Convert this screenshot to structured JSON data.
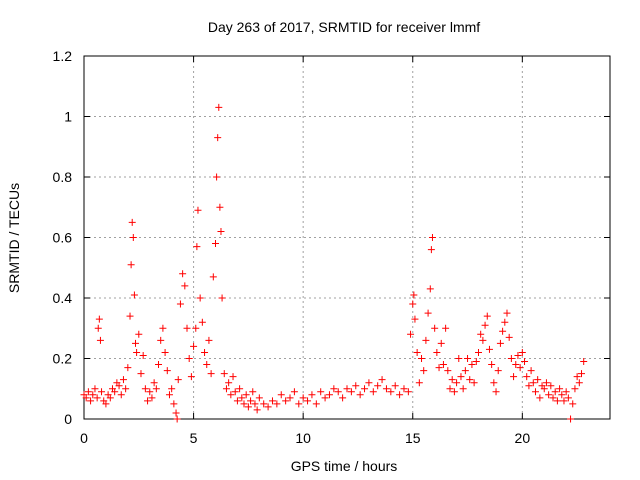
{
  "chart_data": {
    "type": "scatter",
    "title": "Day 263 of 2017, SRMTID for receiver lmmf",
    "xlabel": "GPS time / hours",
    "ylabel": "SRMTID / TECUs",
    "xlim": [
      0,
      24
    ],
    "ylim": [
      0,
      1.2
    ],
    "x_ticks": [
      0,
      5,
      10,
      15,
      20
    ],
    "x_tick_labels": [
      "0",
      "5",
      "10",
      "15",
      "20"
    ],
    "y_ticks": [
      0,
      0.2,
      0.4,
      0.6,
      0.8,
      1,
      1.2
    ],
    "y_tick_labels": [
      "0",
      "0.2",
      "0.4",
      "0.6",
      "0.8",
      "1",
      "1.2"
    ],
    "grid": true,
    "marker": "+",
    "color": "#ff0000",
    "series": [
      {
        "name": "SRMTID",
        "points": [
          [
            0.0,
            0.08
          ],
          [
            0.1,
            0.07
          ],
          [
            0.2,
            0.09
          ],
          [
            0.3,
            0.06
          ],
          [
            0.4,
            0.08
          ],
          [
            0.5,
            0.1
          ],
          [
            0.6,
            0.07
          ],
          [
            0.65,
            0.3
          ],
          [
            0.7,
            0.33
          ],
          [
            0.75,
            0.26
          ],
          [
            0.8,
            0.09
          ],
          [
            0.9,
            0.06
          ],
          [
            1.0,
            0.05
          ],
          [
            1.1,
            0.08
          ],
          [
            1.2,
            0.07
          ],
          [
            1.3,
            0.1
          ],
          [
            1.4,
            0.09
          ],
          [
            1.5,
            0.12
          ],
          [
            1.6,
            0.11
          ],
          [
            1.7,
            0.08
          ],
          [
            1.8,
            0.13
          ],
          [
            1.9,
            0.1
          ],
          [
            2.0,
            0.17
          ],
          [
            2.1,
            0.34
          ],
          [
            2.15,
            0.51
          ],
          [
            2.2,
            0.65
          ],
          [
            2.25,
            0.6
          ],
          [
            2.3,
            0.41
          ],
          [
            2.35,
            0.25
          ],
          [
            2.4,
            0.22
          ],
          [
            2.5,
            0.28
          ],
          [
            2.6,
            0.15
          ],
          [
            2.7,
            0.21
          ],
          [
            2.8,
            0.1
          ],
          [
            2.9,
            0.06
          ],
          [
            3.0,
            0.09
          ],
          [
            3.1,
            0.07
          ],
          [
            3.2,
            0.12
          ],
          [
            3.3,
            0.1
          ],
          [
            3.4,
            0.18
          ],
          [
            3.5,
            0.26
          ],
          [
            3.6,
            0.3
          ],
          [
            3.7,
            0.22
          ],
          [
            3.8,
            0.16
          ],
          [
            3.9,
            0.08
          ],
          [
            4.0,
            0.1
          ],
          [
            4.1,
            0.05
          ],
          [
            4.2,
            0.02
          ],
          [
            4.25,
            0.0
          ],
          [
            4.3,
            0.13
          ],
          [
            4.4,
            0.38
          ],
          [
            4.5,
            0.48
          ],
          [
            4.6,
            0.44
          ],
          [
            4.7,
            0.3
          ],
          [
            4.8,
            0.2
          ],
          [
            4.9,
            0.14
          ],
          [
            5.0,
            0.24
          ],
          [
            5.1,
            0.3
          ],
          [
            5.15,
            0.57
          ],
          [
            5.2,
            0.69
          ],
          [
            5.3,
            0.4
          ],
          [
            5.4,
            0.32
          ],
          [
            5.5,
            0.22
          ],
          [
            5.6,
            0.18
          ],
          [
            5.7,
            0.26
          ],
          [
            5.8,
            0.15
          ],
          [
            5.9,
            0.47
          ],
          [
            6.0,
            0.58
          ],
          [
            6.05,
            0.8
          ],
          [
            6.1,
            0.93
          ],
          [
            6.15,
            1.03
          ],
          [
            6.2,
            0.7
          ],
          [
            6.25,
            0.62
          ],
          [
            6.3,
            0.4
          ],
          [
            6.4,
            0.15
          ],
          [
            6.5,
            0.1
          ],
          [
            6.6,
            0.12
          ],
          [
            6.7,
            0.08
          ],
          [
            6.8,
            0.14
          ],
          [
            6.9,
            0.09
          ],
          [
            7.0,
            0.06
          ],
          [
            7.1,
            0.1
          ],
          [
            7.2,
            0.07
          ],
          [
            7.3,
            0.05
          ],
          [
            7.4,
            0.08
          ],
          [
            7.5,
            0.04
          ],
          [
            7.6,
            0.06
          ],
          [
            7.7,
            0.09
          ],
          [
            7.8,
            0.05
          ],
          [
            7.9,
            0.03
          ],
          [
            8.0,
            0.07
          ],
          [
            8.2,
            0.05
          ],
          [
            8.4,
            0.04
          ],
          [
            8.6,
            0.06
          ],
          [
            8.8,
            0.05
          ],
          [
            9.0,
            0.08
          ],
          [
            9.2,
            0.06
          ],
          [
            9.4,
            0.07
          ],
          [
            9.6,
            0.09
          ],
          [
            9.8,
            0.05
          ],
          [
            10.0,
            0.07
          ],
          [
            10.2,
            0.06
          ],
          [
            10.4,
            0.08
          ],
          [
            10.6,
            0.05
          ],
          [
            10.8,
            0.09
          ],
          [
            11.0,
            0.07
          ],
          [
            11.2,
            0.08
          ],
          [
            11.4,
            0.1
          ],
          [
            11.6,
            0.09
          ],
          [
            11.8,
            0.07
          ],
          [
            12.0,
            0.1
          ],
          [
            12.2,
            0.09
          ],
          [
            12.4,
            0.11
          ],
          [
            12.6,
            0.08
          ],
          [
            12.8,
            0.1
          ],
          [
            13.0,
            0.12
          ],
          [
            13.2,
            0.09
          ],
          [
            13.4,
            0.11
          ],
          [
            13.6,
            0.13
          ],
          [
            13.8,
            0.1
          ],
          [
            14.0,
            0.09
          ],
          [
            14.2,
            0.11
          ],
          [
            14.4,
            0.08
          ],
          [
            14.6,
            0.1
          ],
          [
            14.8,
            0.09
          ],
          [
            14.9,
            0.28
          ],
          [
            15.0,
            0.38
          ],
          [
            15.05,
            0.41
          ],
          [
            15.1,
            0.33
          ],
          [
            15.2,
            0.22
          ],
          [
            15.3,
            0.12
          ],
          [
            15.4,
            0.2
          ],
          [
            15.5,
            0.16
          ],
          [
            15.6,
            0.26
          ],
          [
            15.7,
            0.35
          ],
          [
            15.8,
            0.43
          ],
          [
            15.85,
            0.56
          ],
          [
            15.9,
            0.6
          ],
          [
            16.0,
            0.3
          ],
          [
            16.1,
            0.22
          ],
          [
            16.2,
            0.17
          ],
          [
            16.3,
            0.25
          ],
          [
            16.4,
            0.18
          ],
          [
            16.5,
            0.3
          ],
          [
            16.6,
            0.16
          ],
          [
            16.7,
            0.1
          ],
          [
            16.8,
            0.13
          ],
          [
            16.9,
            0.09
          ],
          [
            17.0,
            0.12
          ],
          [
            17.1,
            0.2
          ],
          [
            17.2,
            0.14
          ],
          [
            17.3,
            0.1
          ],
          [
            17.4,
            0.16
          ],
          [
            17.5,
            0.2
          ],
          [
            17.6,
            0.13
          ],
          [
            17.7,
            0.18
          ],
          [
            17.8,
            0.12
          ],
          [
            17.9,
            0.19
          ],
          [
            18.0,
            0.22
          ],
          [
            18.1,
            0.28
          ],
          [
            18.2,
            0.26
          ],
          [
            18.3,
            0.31
          ],
          [
            18.4,
            0.34
          ],
          [
            18.5,
            0.23
          ],
          [
            18.6,
            0.18
          ],
          [
            18.7,
            0.12
          ],
          [
            18.8,
            0.09
          ],
          [
            18.9,
            0.16
          ],
          [
            19.0,
            0.25
          ],
          [
            19.1,
            0.29
          ],
          [
            19.2,
            0.32
          ],
          [
            19.3,
            0.35
          ],
          [
            19.4,
            0.27
          ],
          [
            19.5,
            0.2
          ],
          [
            19.6,
            0.14
          ],
          [
            19.7,
            0.18
          ],
          [
            19.8,
            0.21
          ],
          [
            19.9,
            0.17
          ],
          [
            20.0,
            0.22
          ],
          [
            20.1,
            0.19
          ],
          [
            20.2,
            0.14
          ],
          [
            20.3,
            0.11
          ],
          [
            20.4,
            0.16
          ],
          [
            20.5,
            0.12
          ],
          [
            20.6,
            0.09
          ],
          [
            20.7,
            0.13
          ],
          [
            20.8,
            0.07
          ],
          [
            20.9,
            0.11
          ],
          [
            21.0,
            0.1
          ],
          [
            21.1,
            0.12
          ],
          [
            21.2,
            0.08
          ],
          [
            21.3,
            0.11
          ],
          [
            21.4,
            0.07
          ],
          [
            21.5,
            0.09
          ],
          [
            21.6,
            0.06
          ],
          [
            21.7,
            0.1
          ],
          [
            21.8,
            0.08
          ],
          [
            21.9,
            0.06
          ],
          [
            22.0,
            0.09
          ],
          [
            22.1,
            0.07
          ],
          [
            22.2,
            0.0
          ],
          [
            22.3,
            0.05
          ],
          [
            22.4,
            0.1
          ],
          [
            22.5,
            0.14
          ],
          [
            22.6,
            0.12
          ],
          [
            22.7,
            0.15
          ],
          [
            22.8,
            0.19
          ]
        ]
      }
    ]
  }
}
